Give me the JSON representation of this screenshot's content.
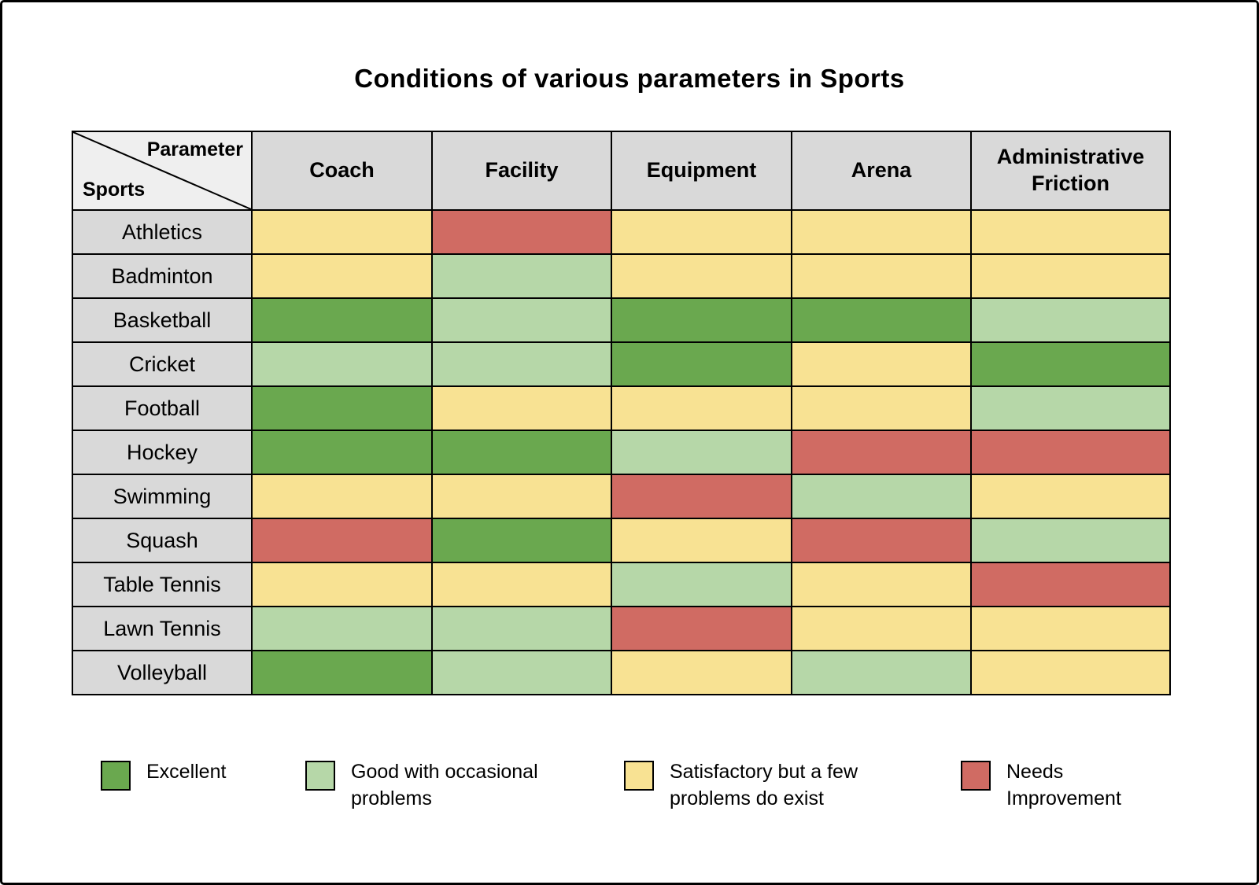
{
  "title": "Conditions of various parameters in Sports",
  "corner": {
    "top_label": "Parameter",
    "bottom_label": "Sports"
  },
  "colors": {
    "excellent": "#6aa84f",
    "good": "#b6d7a8",
    "satisfactory": "#f8e293",
    "needs_improvement": "#d06b63",
    "header_bg": "#d9d9d9",
    "corner_bg": "#efefef",
    "border": "#000000"
  },
  "legend": [
    {
      "key": "excellent",
      "label": "Excellent"
    },
    {
      "key": "good",
      "label": "Good with occasional problems"
    },
    {
      "key": "satisfactory",
      "label": "Satisfactory but a few problems do exist"
    },
    {
      "key": "needs_improvement",
      "label": "Needs Improvement"
    }
  ],
  "chart_data": {
    "type": "heatmap",
    "title": "Conditions of various parameters in Sports",
    "columns": [
      "Coach",
      "Facility",
      "Equipment",
      "Arena",
      "Administrative Friction"
    ],
    "value_scale": {
      "excellent": "Excellent",
      "good": "Good with occasional problems",
      "satisfactory": "Satisfactory but a few problems do exist",
      "needs_improvement": "Needs Improvement"
    },
    "rows": [
      {
        "sport": "Athletics",
        "values": [
          "satisfactory",
          "needs_improvement",
          "satisfactory",
          "satisfactory",
          "satisfactory"
        ]
      },
      {
        "sport": "Badminton",
        "values": [
          "satisfactory",
          "good",
          "satisfactory",
          "satisfactory",
          "satisfactory"
        ]
      },
      {
        "sport": "Basketball",
        "values": [
          "excellent",
          "good",
          "excellent",
          "excellent",
          "good"
        ]
      },
      {
        "sport": "Cricket",
        "values": [
          "good",
          "good",
          "excellent",
          "satisfactory",
          "excellent"
        ]
      },
      {
        "sport": "Football",
        "values": [
          "excellent",
          "satisfactory",
          "satisfactory",
          "satisfactory",
          "good"
        ]
      },
      {
        "sport": "Hockey",
        "values": [
          "excellent",
          "excellent",
          "good",
          "needs_improvement",
          "needs_improvement"
        ]
      },
      {
        "sport": "Swimming",
        "values": [
          "satisfactory",
          "satisfactory",
          "needs_improvement",
          "good",
          "satisfactory"
        ]
      },
      {
        "sport": "Squash",
        "values": [
          "needs_improvement",
          "excellent",
          "satisfactory",
          "needs_improvement",
          "good"
        ]
      },
      {
        "sport": "Table Tennis",
        "values": [
          "satisfactory",
          "satisfactory",
          "good",
          "satisfactory",
          "needs_improvement"
        ]
      },
      {
        "sport": "Lawn Tennis",
        "values": [
          "good",
          "good",
          "needs_improvement",
          "satisfactory",
          "satisfactory"
        ]
      },
      {
        "sport": "Volleyball",
        "values": [
          "excellent",
          "good",
          "satisfactory",
          "good",
          "satisfactory"
        ]
      }
    ]
  }
}
